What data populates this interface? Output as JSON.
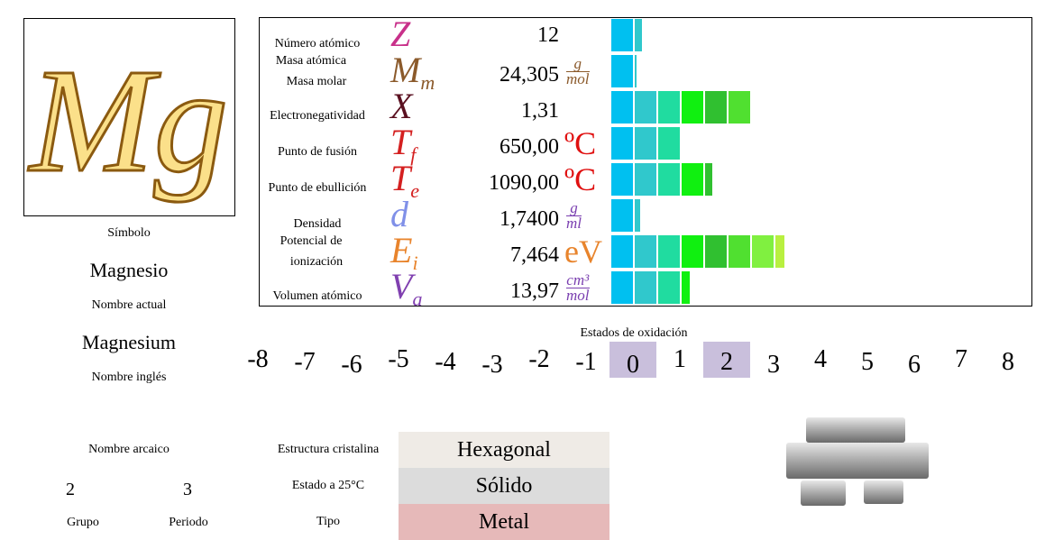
{
  "symbol": {
    "text": "Mg",
    "caption": "Símbolo"
  },
  "names": {
    "current": "Magnesio",
    "current_caption": "Nombre actual",
    "english": "Magnesium",
    "english_caption": "Nombre inglés",
    "archaic_caption": "Nombre arcaico"
  },
  "position": {
    "group": 2,
    "group_caption": "Grupo",
    "period": 3,
    "period_caption": "Periodo"
  },
  "properties": [
    {
      "label": "Número atómico",
      "symbol": {
        "main": "Z",
        "color": "#c8308a"
      },
      "value": "12"
    },
    {
      "label": "Masa atómica",
      "label2": "Masa molar",
      "symbol": {
        "main": "M",
        "sub": "m",
        "color": "#8b5a2b"
      },
      "value": "24,305",
      "unit": {
        "num": "g",
        "den": "mol",
        "color": "#8b5a2b"
      }
    },
    {
      "label": "Electronegatividad",
      "symbol": {
        "main": "X",
        "color": "#5a1020"
      },
      "value": "1,31"
    },
    {
      "label": "Punto de fusión",
      "symbol": {
        "main": "T",
        "sub": "f",
        "color": "#d42020"
      },
      "value": "650,00",
      "unit": {
        "text": "ºC",
        "color": "#e01010"
      }
    },
    {
      "label": "Punto de ebullición",
      "symbol": {
        "main": "T",
        "sub": "e",
        "color": "#d42020"
      },
      "value": "1090,00",
      "unit": {
        "text": "ºC",
        "color": "#e01010"
      }
    },
    {
      "label": "Densidad",
      "symbol": {
        "main": "d",
        "color": "#8090e8"
      },
      "value": "1,7400",
      "unit": {
        "num": "g",
        "den": "ml",
        "color": "#7a3fb0"
      }
    },
    {
      "label": "Potencial de",
      "label2": "ionización",
      "symbol": {
        "main": "E",
        "sub": "i",
        "color": "#e8842c"
      },
      "value": "7,464",
      "unit": {
        "text": "eV",
        "color": "#e8842c"
      }
    },
    {
      "label": "Volumen atómico",
      "symbol": {
        "main": "V",
        "sub": "a",
        "color": "#8040b0"
      },
      "value": "13,97",
      "unit": {
        "num": "cm³",
        "den": "mol",
        "color": "#7a3fb0"
      }
    }
  ],
  "oxidation": {
    "title": "Estados de oxidación",
    "states": [
      -8,
      -7,
      -6,
      -5,
      -4,
      -3,
      -2,
      -1,
      0,
      1,
      2,
      3,
      4,
      5,
      6,
      7,
      8
    ],
    "common": [
      0,
      2
    ],
    "highlight": "#c9bfdc"
  },
  "structure": [
    {
      "label": "Estructura cristalina",
      "value": "Hexagonal",
      "color": "#efebe6"
    },
    {
      "label": "Estado a 25°C",
      "value": "Sólido",
      "color": "#dcdcdc"
    },
    {
      "label": "Tipo",
      "value": "Metal",
      "color": "#e6b9b9"
    }
  ]
}
